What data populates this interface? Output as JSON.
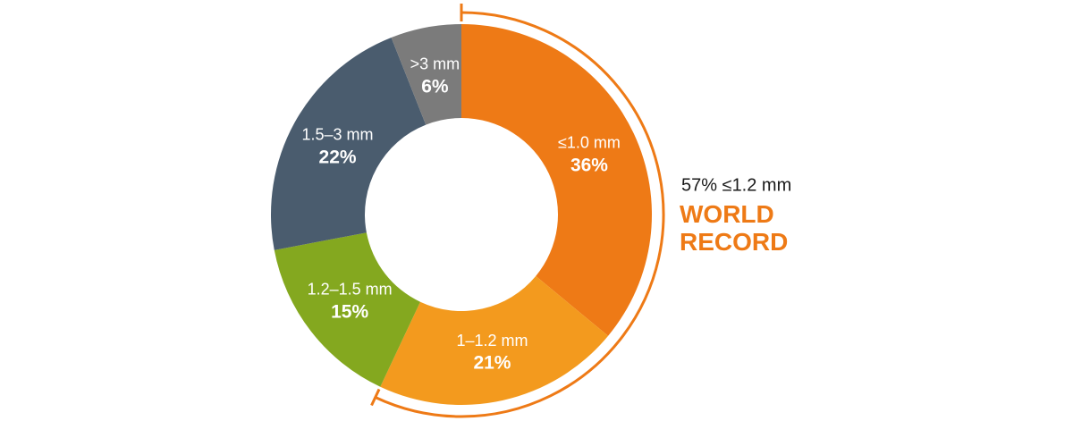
{
  "chart_data": {
    "type": "donut",
    "categories": [
      "≤1.0 mm",
      "1–1.2 mm",
      "1.2–1.5 mm",
      "1.5–3 mm",
      ">3 mm"
    ],
    "values": [
      36,
      21,
      15,
      22,
      6
    ],
    "value_labels": [
      "36%",
      "21%",
      "15%",
      "22%",
      "6%"
    ],
    "colors": [
      "#ee7a16",
      "#f39a1e",
      "#84a81f",
      "#4a5c6e",
      "#7b7b7b"
    ],
    "annotation": "57% ≤1.2 mm",
    "highlight": "WORLD RECORD",
    "bracket_color": "#ee7a16"
  }
}
